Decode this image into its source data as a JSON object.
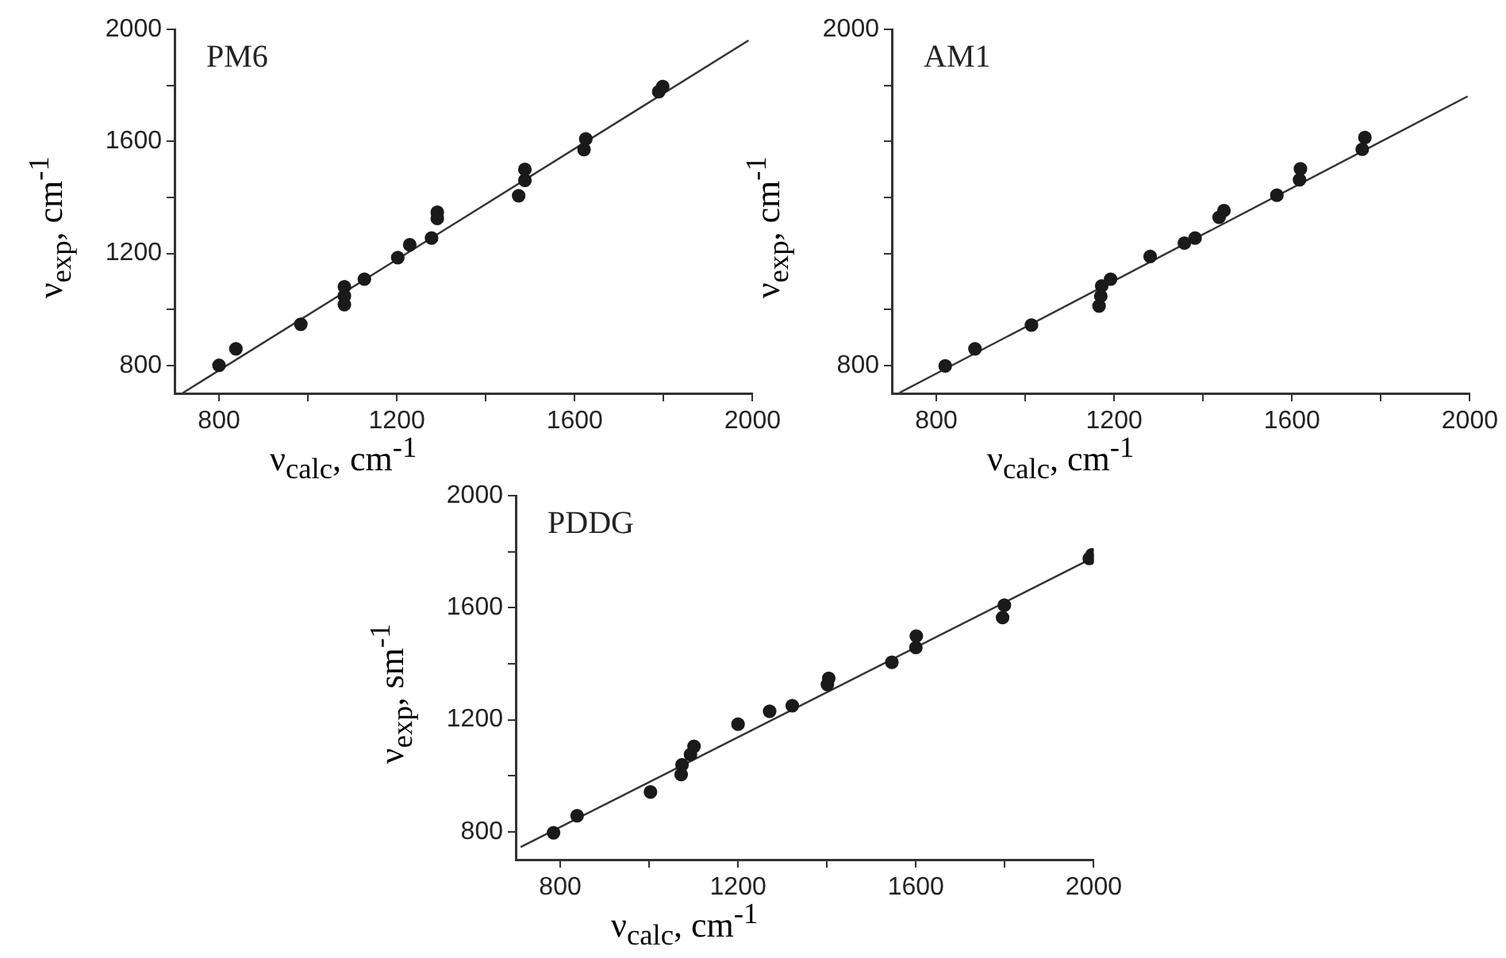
{
  "chart_data": [
    {
      "type": "scatter",
      "title": "PM6",
      "xlabel": "ν$_{calc}$, cm$^{-1}$",
      "ylabel": "ν$_{exp}$, cm$^{-1}$",
      "xlim": [
        700,
        2000
      ],
      "ylim": [
        700,
        2000
      ],
      "xticks": [
        800,
        {
          "value": 1000,
          "label": null
        },
        1200,
        {
          "value": 1400,
          "label": null
        },
        1600,
        {
          "value": 1800,
          "label": null
        },
        2000
      ],
      "yticks": [
        800,
        {
          "value": 1000,
          "label": null
        },
        1200,
        {
          "value": 1400,
          "label": null
        },
        1600,
        {
          "value": 1800,
          "label": null
        },
        2000
      ],
      "grid": false,
      "series": [
        {
          "marker": "circle",
          "color": "#1a1a1a",
          "x": [
            800,
            838,
            984,
            1082,
            1082,
            1082,
            1127,
            1202,
            1229,
            1278,
            1291,
            1291,
            1474,
            1488,
            1488,
            1621,
            1625,
            1789,
            1798
          ],
          "values": [
            800,
            859,
            947,
            1048,
            1017,
            1081,
            1108,
            1185,
            1231,
            1255,
            1347,
            1325,
            1406,
            1461,
            1500,
            1571,
            1609,
            1778,
            1796
          ]
        },
        {
          "type": "line",
          "marker": "none",
          "color": "#333333",
          "x": [
            718,
            1991
          ],
          "values": [
            701,
            1961
          ]
        }
      ]
    },
    {
      "type": "scatter",
      "title": "AM1",
      "xlabel": "ν$_{calc}$, cm$^{-1}$",
      "ylabel": "ν$_{exp}$, cm$^{-1}$",
      "xlim": [
        700,
        2000
      ],
      "ylim": [
        700,
        2000
      ],
      "xticks": [
        800,
        {
          "value": 1000,
          "label": null
        },
        1200,
        {
          "value": 1400,
          "label": null
        },
        1600,
        {
          "value": 1800,
          "label": null
        },
        2000
      ],
      "yticks": [
        800,
        {
          "value": 1000,
          "label": null
        },
        {
          "value": 1200,
          "label": null
        },
        {
          "value": 1400,
          "label": null
        },
        {
          "value": 1600,
          "label": null
        },
        {
          "value": 1800,
          "label": null
        },
        2000
      ],
      "grid": false,
      "series": [
        {
          "marker": "circle",
          "color": "#1a1a1a",
          "x": [
            820,
            887,
            1014,
            1166,
            1170,
            1172,
            1192,
            1281,
            1358,
            1382,
            1436,
            1447,
            1566,
            1617,
            1619,
            1758,
            1764
          ],
          "values": [
            798,
            859,
            944,
            1012,
            1047,
            1084,
            1108,
            1189,
            1237,
            1255,
            1329,
            1353,
            1408,
            1463,
            1502,
            1572,
            1614
          ]
        },
        {
          "type": "line",
          "marker": "none",
          "color": "#333333",
          "x": [
            717,
            1995
          ],
          "values": [
            702,
            1761
          ]
        }
      ]
    },
    {
      "type": "scatter",
      "title": "PDDG",
      "xlabel": "ν$_{calc}$, cm$^{-1}$",
      "ylabel": "ν$_{exp}$, sm$^{-1}$",
      "xlim": [
        700,
        2000
      ],
      "ylim": [
        700,
        2000
      ],
      "xticks": [
        800,
        {
          "value": 1000,
          "label": null
        },
        1200,
        {
          "value": 1400,
          "label": null
        },
        1600,
        {
          "value": 1800,
          "label": null
        },
        2000
      ],
      "yticks": [
        800,
        {
          "value": 1000,
          "label": null
        },
        1200,
        {
          "value": 1400,
          "label": null
        },
        1600,
        {
          "value": 1800,
          "label": null
        },
        2000
      ],
      "grid": false,
      "series": [
        {
          "marker": "circle",
          "color": "#1a1a1a",
          "x": [
            785,
            838,
            1003,
            1072,
            1074,
            1093,
            1101,
            1200,
            1271,
            1322,
            1401,
            1404,
            1546,
            1600,
            1601,
            1795,
            1799,
            1990,
            1996
          ],
          "values": [
            796,
            857,
            942,
            1004,
            1039,
            1076,
            1105,
            1184,
            1230,
            1250,
            1326,
            1348,
            1405,
            1458,
            1499,
            1565,
            1609,
            1776,
            1789
          ]
        },
        {
          "type": "line",
          "marker": "none",
          "color": "#333333",
          "x": [
            711,
            2000
          ],
          "values": [
            745,
            1780
          ]
        }
      ]
    }
  ]
}
